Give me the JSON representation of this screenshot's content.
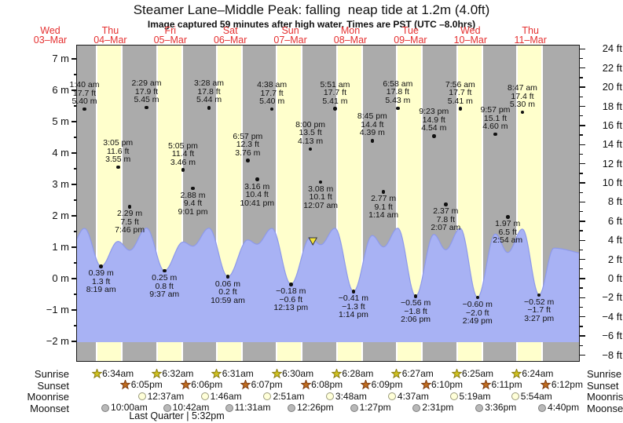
{
  "title": "Steamer Lane–Middle Peak: falling  neap tide at 1.2m (4.0ft)",
  "subtitle": "Image captured 59 minutes after high water. Times are PST (UTC –8.0hrs)",
  "days": [
    {
      "name": "Wed",
      "date": "03–Mar"
    },
    {
      "name": "Thu",
      "date": "04–Mar"
    },
    {
      "name": "Fri",
      "date": "05–Mar"
    },
    {
      "name": "Sat",
      "date": "06–Mar"
    },
    {
      "name": "Sun",
      "date": "07–Mar"
    },
    {
      "name": "Mon",
      "date": "08–Mar"
    },
    {
      "name": "Tue",
      "date": "09–Mar"
    },
    {
      "name": "Wed",
      "date": "10–Mar"
    },
    {
      "name": "Thu",
      "date": "11–Mar"
    }
  ],
  "axes": {
    "left_unit": "m",
    "left_min": -2,
    "left_max": 7,
    "left_step": 1,
    "right_unit": "ft",
    "right_min": -8,
    "right_max": 24,
    "right_step": 2
  },
  "legend": {
    "left": {
      "sunrise": "Sunrise",
      "sunset": "Sunset",
      "moonrise": "Moonrise",
      "moonset": "Moonset"
    },
    "right": {
      "sunrise": "Sunrise",
      "sunset": "Sunset",
      "moonrise": "Moonrise",
      "moonset": "Moonset"
    }
  },
  "footer": "Last Quarter | 5:32pm",
  "marker": {
    "day": 4,
    "time": "8:59 pm",
    "level_m": 1.2
  },
  "colors": {
    "band_gray": "#ababab",
    "band_yellow": "#ffffcc",
    "tide_fill": "#a8b2f4",
    "tide_edge": "#8d99ea",
    "day_label": "#e53030",
    "sunrise_star": "#cfc11f",
    "sunrise_edge": "#8a7d12",
    "sunset_star": "#c06c1e",
    "sunset_edge": "#7d3a10",
    "moonrise_fill": "#ffffd9",
    "moonrise_edge": "#99997a",
    "moonset_fill": "#b9b9b9",
    "moonset_edge": "#7d7d7d",
    "marker_yellow": "#f2e23a"
  },
  "chart_data": {
    "type": "area",
    "title": "Steamer Lane–Middle Peak: falling  neap tide at 1.2m (4.0ft)",
    "ylabel_left": "m",
    "ylabel_right": "ft",
    "ylim_m": [
      -2,
      7
    ],
    "ylim_ft": [
      -8,
      24
    ],
    "x_days": [
      "Wed 03-Mar",
      "Thu 04-Mar",
      "Fri 05-Mar",
      "Sat 06-Mar",
      "Sun 07-Mar",
      "Mon 08-Mar",
      "Tue 09-Mar",
      "Wed 10-Mar",
      "Thu 11-Mar"
    ],
    "tide_events": [
      {
        "day": 1,
        "time": "1:40 am",
        "kind": "high",
        "height_m": 5.4,
        "height_ft": 17.7
      },
      {
        "day": 1,
        "time": "8:19 am",
        "kind": "low",
        "height_m": 0.39,
        "height_ft": 1.3
      },
      {
        "day": 1,
        "time": "3:05 pm",
        "kind": "high",
        "height_m": 3.55,
        "height_ft": 11.6
      },
      {
        "day": 1,
        "time": "7:46 pm",
        "kind": "low",
        "height_m": 2.29,
        "height_ft": 7.5
      },
      {
        "day": 2,
        "time": "2:29 am",
        "kind": "high",
        "height_m": 5.45,
        "height_ft": 17.9
      },
      {
        "day": 2,
        "time": "9:37 am",
        "kind": "low",
        "height_m": 0.25,
        "height_ft": 0.8
      },
      {
        "day": 2,
        "time": "5:05 pm",
        "kind": "high",
        "height_m": 3.46,
        "height_ft": 11.4
      },
      {
        "day": 2,
        "time": "9:01 pm",
        "kind": "low",
        "height_m": 2.88,
        "height_ft": 9.4
      },
      {
        "day": 3,
        "time": "3:28 am",
        "kind": "high",
        "height_m": 5.44,
        "height_ft": 17.8
      },
      {
        "day": 3,
        "time": "10:59 am",
        "kind": "low",
        "height_m": 0.06,
        "height_ft": 0.2
      },
      {
        "day": 3,
        "time": "6:57 pm",
        "kind": "high",
        "height_m": 3.76,
        "height_ft": 12.3
      },
      {
        "day": 3,
        "time": "10:41 pm",
        "kind": "low",
        "height_m": 3.16,
        "height_ft": 10.4
      },
      {
        "day": 4,
        "time": "4:38 am",
        "kind": "high",
        "height_m": 5.4,
        "height_ft": 17.7
      },
      {
        "day": 4,
        "time": "12:13 pm",
        "kind": "low",
        "height_m": -0.18,
        "height_ft": -0.6
      },
      {
        "day": 4,
        "time": "8:00 pm",
        "kind": "high",
        "height_m": 4.13,
        "height_ft": 13.5
      },
      {
        "day": 5,
        "time": "12:07 am",
        "kind": "low",
        "height_m": 3.08,
        "height_ft": 10.1
      },
      {
        "day": 5,
        "time": "5:51 am",
        "kind": "high",
        "height_m": 5.41,
        "height_ft": 17.7
      },
      {
        "day": 5,
        "time": "1:14 pm",
        "kind": "low",
        "height_m": -0.41,
        "height_ft": -1.3
      },
      {
        "day": 5,
        "time": "8:45 pm",
        "kind": "high",
        "height_m": 4.39,
        "height_ft": 14.4
      },
      {
        "day": 6,
        "time": "1:14 am",
        "kind": "low",
        "height_m": 2.77,
        "height_ft": 9.1
      },
      {
        "day": 6,
        "time": "6:58 am",
        "kind": "high",
        "height_m": 5.43,
        "height_ft": 17.8
      },
      {
        "day": 6,
        "time": "2:06 pm",
        "kind": "low",
        "height_m": -0.56,
        "height_ft": -1.8
      },
      {
        "day": 6,
        "time": "9:23 pm",
        "kind": "high",
        "height_m": 4.54,
        "height_ft": 14.9
      },
      {
        "day": 7,
        "time": "2:07 am",
        "kind": "low",
        "height_m": 2.37,
        "height_ft": 7.8
      },
      {
        "day": 7,
        "time": "7:56 am",
        "kind": "high",
        "height_m": 5.41,
        "height_ft": 17.7
      },
      {
        "day": 7,
        "time": "2:49 pm",
        "kind": "low",
        "height_m": -0.6,
        "height_ft": -2.0
      },
      {
        "day": 7,
        "time": "9:57 pm",
        "kind": "high",
        "height_m": 4.6,
        "height_ft": 15.1
      },
      {
        "day": 8,
        "time": "2:54 am",
        "kind": "low",
        "height_m": 1.97,
        "height_ft": 6.5
      },
      {
        "day": 8,
        "time": "8:47 am",
        "kind": "high",
        "height_m": 5.3,
        "height_ft": 17.4
      },
      {
        "day": 8,
        "time": "3:27 pm",
        "kind": "low",
        "height_m": -0.52,
        "height_ft": -1.7
      }
    ],
    "sunrise": [
      {
        "day": 1,
        "time": "6:34am"
      },
      {
        "day": 2,
        "time": "6:32am"
      },
      {
        "day": 3,
        "time": "6:31am"
      },
      {
        "day": 4,
        "time": "6:30am"
      },
      {
        "day": 5,
        "time": "6:28am"
      },
      {
        "day": 6,
        "time": "6:27am"
      },
      {
        "day": 7,
        "time": "6:25am"
      },
      {
        "day": 8,
        "time": "6:24am"
      }
    ],
    "sunset": [
      {
        "day": 1,
        "time": "6:05pm"
      },
      {
        "day": 2,
        "time": "6:06pm"
      },
      {
        "day": 3,
        "time": "6:07pm"
      },
      {
        "day": 4,
        "time": "6:08pm"
      },
      {
        "day": 5,
        "time": "6:09pm"
      },
      {
        "day": 6,
        "time": "6:10pm"
      },
      {
        "day": 7,
        "time": "6:11pm"
      },
      {
        "day": 8,
        "time": "6:12pm"
      }
    ],
    "moonrise": [
      {
        "day": 2,
        "time": "12:37am"
      },
      {
        "day": 3,
        "time": "1:46am"
      },
      {
        "day": 4,
        "time": "2:51am"
      },
      {
        "day": 5,
        "time": "3:48am"
      },
      {
        "day": 6,
        "time": "4:37am"
      },
      {
        "day": 7,
        "time": "5:19am"
      },
      {
        "day": 8,
        "time": "5:54am"
      }
    ],
    "moonset": [
      {
        "day": 1,
        "time": "10:00am"
      },
      {
        "day": 2,
        "time": "10:42am"
      },
      {
        "day": 3,
        "time": "11:31am"
      },
      {
        "day": 4,
        "time": "12:26pm"
      },
      {
        "day": 5,
        "time": "1:27pm"
      },
      {
        "day": 6,
        "time": "2:31pm"
      },
      {
        "day": 7,
        "time": "3:36pm"
      },
      {
        "day": 8,
        "time": "4:40pm"
      }
    ],
    "moon_phase": "Last Quarter | 5:32pm"
  }
}
